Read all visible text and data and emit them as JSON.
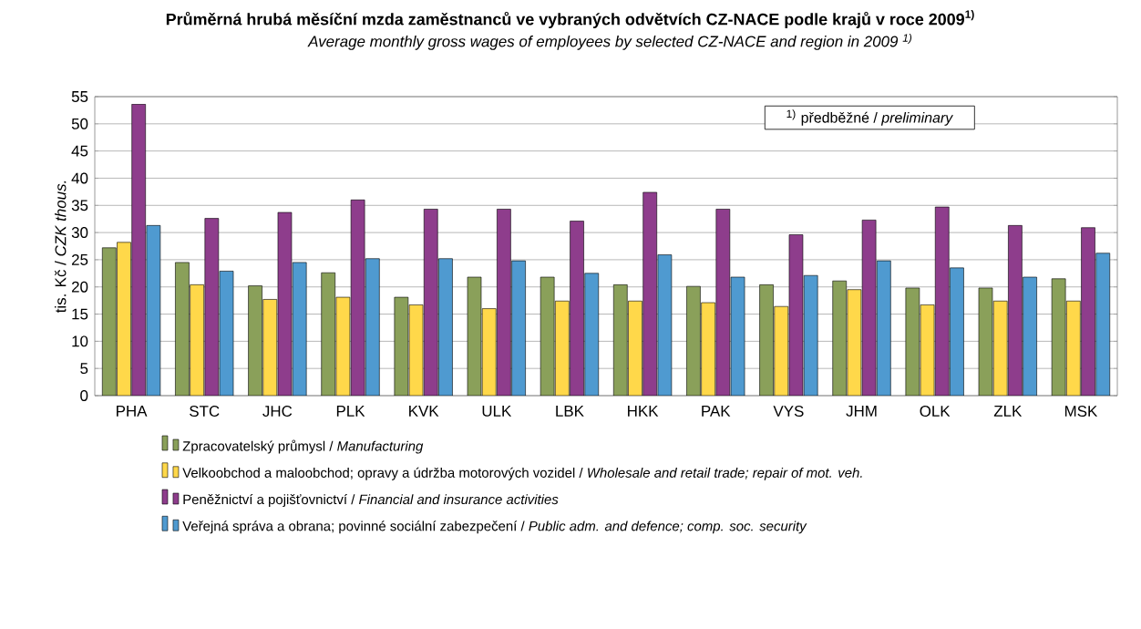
{
  "chart_data": {
    "type": "bar",
    "title": "Průměrná hrubá měsíční mzda zaměstnanců ve vybraných odvětvích CZ-NACE podle krajů v roce 2009$^{1)}$",
    "subtitle": "Average monthly gross wages of employees by selected CZ-NACE and region in 2009 $^{1)}$",
    "ylabel": "tis. Kč / *CZK thous.*",
    "annotations": [
      "$^{1)}$ předběžné / *preliminary*"
    ],
    "categories": [
      "PHA",
      "STC",
      "JHC",
      "PLK",
      "KVK",
      "ULK",
      "LBK",
      "HKK",
      "PAK",
      "VYS",
      "JHM",
      "OLK",
      "ZLK",
      "MSK"
    ],
    "series": [
      {
        "name": "Zpracovatelský průmysl / *Manufacturing*",
        "color": "#8aa05a",
        "values": [
          27.2,
          24.5,
          20.2,
          22.6,
          18.1,
          21.8,
          21.8,
          20.4,
          20.1,
          20.4,
          21.1,
          19.8,
          19.8,
          21.5
        ]
      },
      {
        "name": "Velkoobchod a maloobchod; opravy a údržba motorových vozidel / *Wholesale and retail trade; repair of mot. veh.*",
        "color": "#ffd84a",
        "values": [
          28.2,
          20.4,
          17.7,
          18.1,
          16.7,
          16.0,
          17.4,
          17.4,
          17.1,
          16.4,
          19.5,
          16.7,
          17.4,
          17.4
        ]
      },
      {
        "name": "Peněžnictví a pojišťovnictví / *Financial and insurance activities*",
        "color": "#8e3d8c",
        "values": [
          53.6,
          32.6,
          33.7,
          36.0,
          34.3,
          34.3,
          32.1,
          37.4,
          34.3,
          29.6,
          32.3,
          34.7,
          31.3,
          30.9
        ]
      },
      {
        "name": "Veřejná správa a obrana; povinné sociální zabezpečení / *Public adm. and defence; comp. soc. security*",
        "color": "#4f9ad0",
        "values": [
          31.3,
          22.9,
          24.5,
          25.2,
          25.2,
          24.8,
          22.5,
          25.9,
          21.8,
          22.1,
          24.8,
          23.5,
          21.8,
          26.2
        ]
      }
    ],
    "ylim": [
      0,
      55
    ],
    "yticks": [
      0,
      5,
      10,
      15,
      20,
      25,
      30,
      35,
      40,
      45,
      50,
      55
    ],
    "grid": "y",
    "legend": "bottom"
  }
}
